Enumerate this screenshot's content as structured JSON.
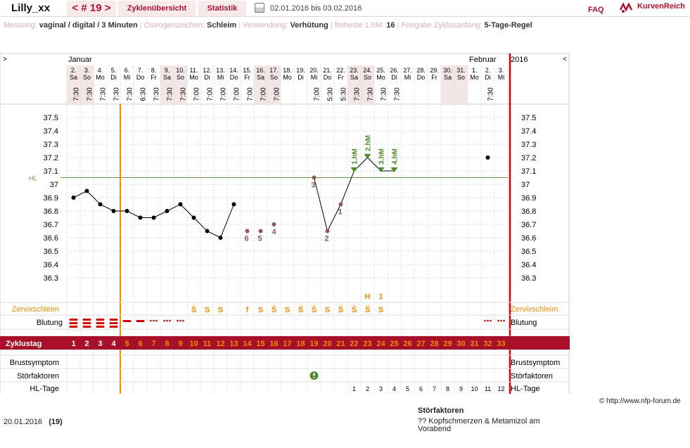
{
  "header": {
    "username": "Lilly_xx",
    "cycle_label": "< # 19 >",
    "tabs": [
      "Zyklenübersicht",
      "Statistik"
    ],
    "print_icon": "printer-icon",
    "date_range": "02.01.2016 bis 03.02.2016",
    "faq": "FAQ",
    "brand": "KurvenReich",
    "brand_icon": "kurvenreich-logo"
  },
  "info": [
    {
      "label": "Messung:",
      "value": "vaginal / digital / 3 Minuten"
    },
    {
      "label": "Östrogenzeichen:",
      "value": "Schleim"
    },
    {
      "label": "Verwendung:",
      "value": "Verhütung"
    },
    {
      "label": "früheste 1.hM:",
      "value": "16"
    },
    {
      "label": "Freigabe Zyklusanfang:",
      "value": "5-Tage-Regel"
    }
  ],
  "chart_data": {
    "type": "line",
    "months": [
      {
        "name": "Januar",
        "day_index": 0
      },
      {
        "name": "Februar",
        "day_index": 30
      }
    ],
    "year": "2016",
    "nav_left": ">",
    "nav_right": "<",
    "days": [
      {
        "d": "2.",
        "w": "Sa",
        "t": "7:30",
        "we": 1
      },
      {
        "d": "3.",
        "w": "So",
        "t": "7:30",
        "we": 1
      },
      {
        "d": "4.",
        "w": "Mo",
        "t": "7:30"
      },
      {
        "d": "5.",
        "w": "Di",
        "t": "7:30"
      },
      {
        "d": "6.",
        "w": "Mi",
        "t": "7:30"
      },
      {
        "d": "7.",
        "w": "Do",
        "t": "6:30"
      },
      {
        "d": "8.",
        "w": "Fr",
        "t": "7:30"
      },
      {
        "d": "9.",
        "w": "Sa",
        "t": "7:30",
        "we": 1
      },
      {
        "d": "10.",
        "w": "So",
        "t": "7:30",
        "we": 1
      },
      {
        "d": "11.",
        "w": "Mo",
        "t": "7:00"
      },
      {
        "d": "12.",
        "w": "Di",
        "t": "7:00"
      },
      {
        "d": "13.",
        "w": "Mi",
        "t": "7:00"
      },
      {
        "d": "14.",
        "w": "Do",
        "t": "7:00"
      },
      {
        "d": "15.",
        "w": "Fr",
        "t": "7:00"
      },
      {
        "d": "16.",
        "w": "Sa",
        "t": "7:00",
        "we": 1
      },
      {
        "d": "17.",
        "w": "So",
        "t": "7:00",
        "we": 1
      },
      {
        "d": "18.",
        "w": "Mo",
        "t": ""
      },
      {
        "d": "19.",
        "w": "Di",
        "t": ""
      },
      {
        "d": "20.",
        "w": "Mi",
        "t": "7:00"
      },
      {
        "d": "21.",
        "w": "Do",
        "t": "5:30"
      },
      {
        "d": "22.",
        "w": "Fr",
        "t": "5:30"
      },
      {
        "d": "23.",
        "w": "Sa",
        "t": "7:30",
        "we": 1
      },
      {
        "d": "24.",
        "w": "So",
        "t": "7:30",
        "we": 1
      },
      {
        "d": "25.",
        "w": "Mo",
        "t": "7:30"
      },
      {
        "d": "26.",
        "w": "Di",
        "t": "7:30"
      },
      {
        "d": "27.",
        "w": "Mi",
        "t": ""
      },
      {
        "d": "28.",
        "w": "Do",
        "t": ""
      },
      {
        "d": "29.",
        "w": "Fr",
        "t": ""
      },
      {
        "d": "30.",
        "w": "Sa",
        "t": "",
        "we": 1
      },
      {
        "d": "31.",
        "w": "So",
        "t": "",
        "we": 1
      },
      {
        "d": "1.",
        "w": "Mo",
        "t": ""
      },
      {
        "d": "2.",
        "w": "Di",
        "t": "7:30"
      },
      {
        "d": "3.",
        "w": "Mi",
        "t": ""
      }
    ],
    "y_ticks": [
      "37.5",
      "37.4",
      "37.3",
      "37.2",
      "37.1",
      "37",
      "36.9",
      "36.8",
      "36.7",
      "36.6",
      "36.5",
      "36.4",
      "36.3"
    ],
    "ylim": [
      36.2,
      37.6
    ],
    "hl_label": "HL",
    "hl_value": 37.05,
    "temps": [
      36.9,
      36.95,
      36.85,
      36.8,
      36.8,
      36.75,
      36.75,
      36.8,
      36.85,
      36.75,
      36.65,
      36.6,
      36.85,
      36.65,
      36.65,
      36.7,
      null,
      null,
      37.05,
      36.65,
      36.85,
      37.1,
      37.2,
      37.1,
      37.1,
      null,
      null,
      null,
      null,
      null,
      null,
      37.2,
      null
    ],
    "excluded_points": [
      13,
      14,
      15,
      18,
      19,
      20
    ],
    "connected_segments": [
      [
        0,
        12
      ],
      [
        18,
        24
      ]
    ],
    "point_labels": [
      {
        "i": 13,
        "text": "6"
      },
      {
        "i": 14,
        "text": "5"
      },
      {
        "i": 15,
        "text": "4"
      },
      {
        "i": 18,
        "text": "3"
      },
      {
        "i": 19,
        "text": "2"
      },
      {
        "i": 20,
        "text": "1"
      }
    ],
    "hm_labels": [
      {
        "i": 21,
        "text": "1.hM"
      },
      {
        "i": 22,
        "text": "2.hM"
      },
      {
        "i": 23,
        "text": "3.hM"
      },
      {
        "i": 24,
        "text": "4.hM"
      }
    ],
    "h_marker": {
      "i": 22,
      "text": "H"
    },
    "h_count": {
      "i": 23,
      "text": "1"
    },
    "zervix_label": "Zervixschleim",
    "zervix": [
      "",
      "",
      "",
      "",
      "",
      "",
      "",
      "",
      "",
      "S̈",
      "S",
      "S",
      "",
      "f",
      "S",
      "S̈",
      "S",
      "S̈",
      "S̈",
      "S",
      "S̈",
      "S̈",
      "S̈",
      "S",
      "",
      "",
      "",
      "",
      "",
      "",
      "",
      "",
      ""
    ],
    "blutung_label": "Blutung",
    "blutung": [
      "heavy",
      "heavy",
      "heavy",
      "heavy",
      "medium",
      "medium",
      "light",
      "light",
      "light",
      "",
      "",
      "",
      "",
      "",
      "",
      "",
      "",
      "",
      "",
      "",
      "",
      "",
      "",
      "",
      "",
      "",
      "",
      "",
      "",
      "",
      "",
      "light",
      "light"
    ],
    "zyklustag_label": "Zyklustag",
    "zyklustag": [
      "1",
      "2",
      "3",
      "4",
      "5",
      "6",
      "7",
      "8",
      "9",
      "10",
      "11",
      "12",
      "13",
      "14",
      "15",
      "16",
      "17",
      "18",
      "19",
      "20",
      "21",
      "22",
      "23",
      "24",
      "25",
      "26",
      "27",
      "28",
      "29",
      "30",
      "31",
      "32",
      "33"
    ],
    "brust_label": "Brustsymptom",
    "stoer_label": "Störfaktoren",
    "stoer_icon_index": 18,
    "hl_tage_label": "HL-Tage",
    "hl_tage": [
      "",
      "",
      "",
      "",
      "",
      "",
      "",
      "",
      "",
      "",
      "",
      "",
      "",
      "",
      "",
      "",
      "",
      "",
      "",
      "",
      "",
      "1",
      "2",
      "3",
      "4",
      "5",
      "6",
      "7",
      "8",
      "9",
      "10",
      "11",
      "12"
    ],
    "cycle_start_index": 4
  },
  "footer": {
    "date": "20.01.2016",
    "cycle": "(19)",
    "stoer_title": "Störfaktoren",
    "stoer_text": "?? Kopfschmerzen & Metamizol am Vorabend",
    "copyright": "© http://www.nfp-forum.de"
  },
  "colors": {
    "accent": "#b01030",
    "orange": "#f08a00",
    "hl_line": "#6a9a3a",
    "hm": "#4f8a2a"
  }
}
